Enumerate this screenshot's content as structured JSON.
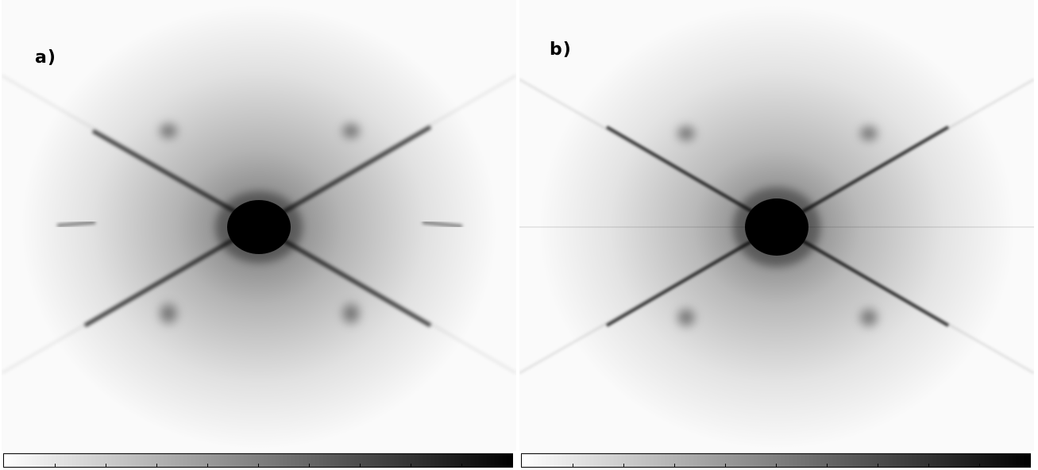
{
  "panels": [
    {
      "id": "a",
      "label": "a)",
      "colormap": [
        "#ffffff",
        "#000000"
      ],
      "colorbar_ticks": 10
    },
    {
      "id": "b",
      "label": "b)",
      "colormap": [
        "#ffffff",
        "#000000"
      ],
      "colorbar_ticks": 10
    }
  ]
}
